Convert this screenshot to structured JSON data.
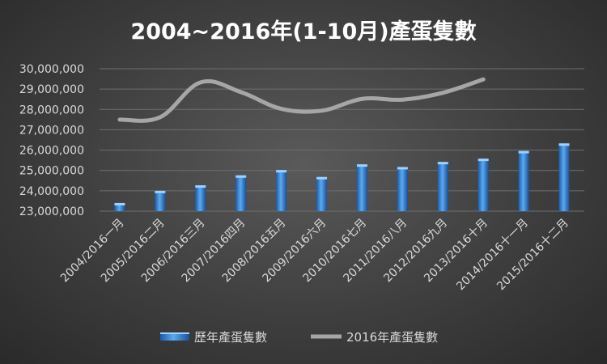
{
  "chart_data": {
    "type": "bar",
    "title": "2004~2016年(1-10月)產蛋隻數",
    "categories": [
      "2004/2016一月",
      "2005/2016二月",
      "2006/2016三月",
      "2007/2016四月",
      "2008/2016五月",
      "2009/2016六月",
      "2010/2016七月",
      "2011/2016八月",
      "2012/2016九月",
      "2013/2016十月",
      "2014/2016十一月",
      "2015/2016十二月"
    ],
    "series": [
      {
        "name": "歷年產蛋隻數",
        "type": "bar",
        "color": "#2f7ed8",
        "values": [
          23400000,
          24000000,
          24270000,
          24760000,
          25020000,
          24680000,
          25300000,
          25170000,
          25420000,
          25580000,
          25960000,
          26330000
        ]
      },
      {
        "name": "2016年產蛋隻數",
        "type": "line",
        "color": "#a6a6a6",
        "values": [
          27500000,
          27620000,
          29330000,
          28850000,
          28030000,
          27940000,
          28520000,
          28480000,
          28820000,
          29480000,
          null,
          null
        ]
      }
    ],
    "ylim": [
      23000000,
      30000000
    ],
    "yticks": [
      "23,000,000",
      "24,000,000",
      "25,000,000",
      "26,000,000",
      "27,000,000",
      "28,000,000",
      "29,000,000",
      "30,000,000"
    ],
    "ytick_values": [
      23000000,
      24000000,
      25000000,
      26000000,
      27000000,
      28000000,
      29000000,
      30000000
    ],
    "grid": true,
    "legend": "bottom"
  }
}
